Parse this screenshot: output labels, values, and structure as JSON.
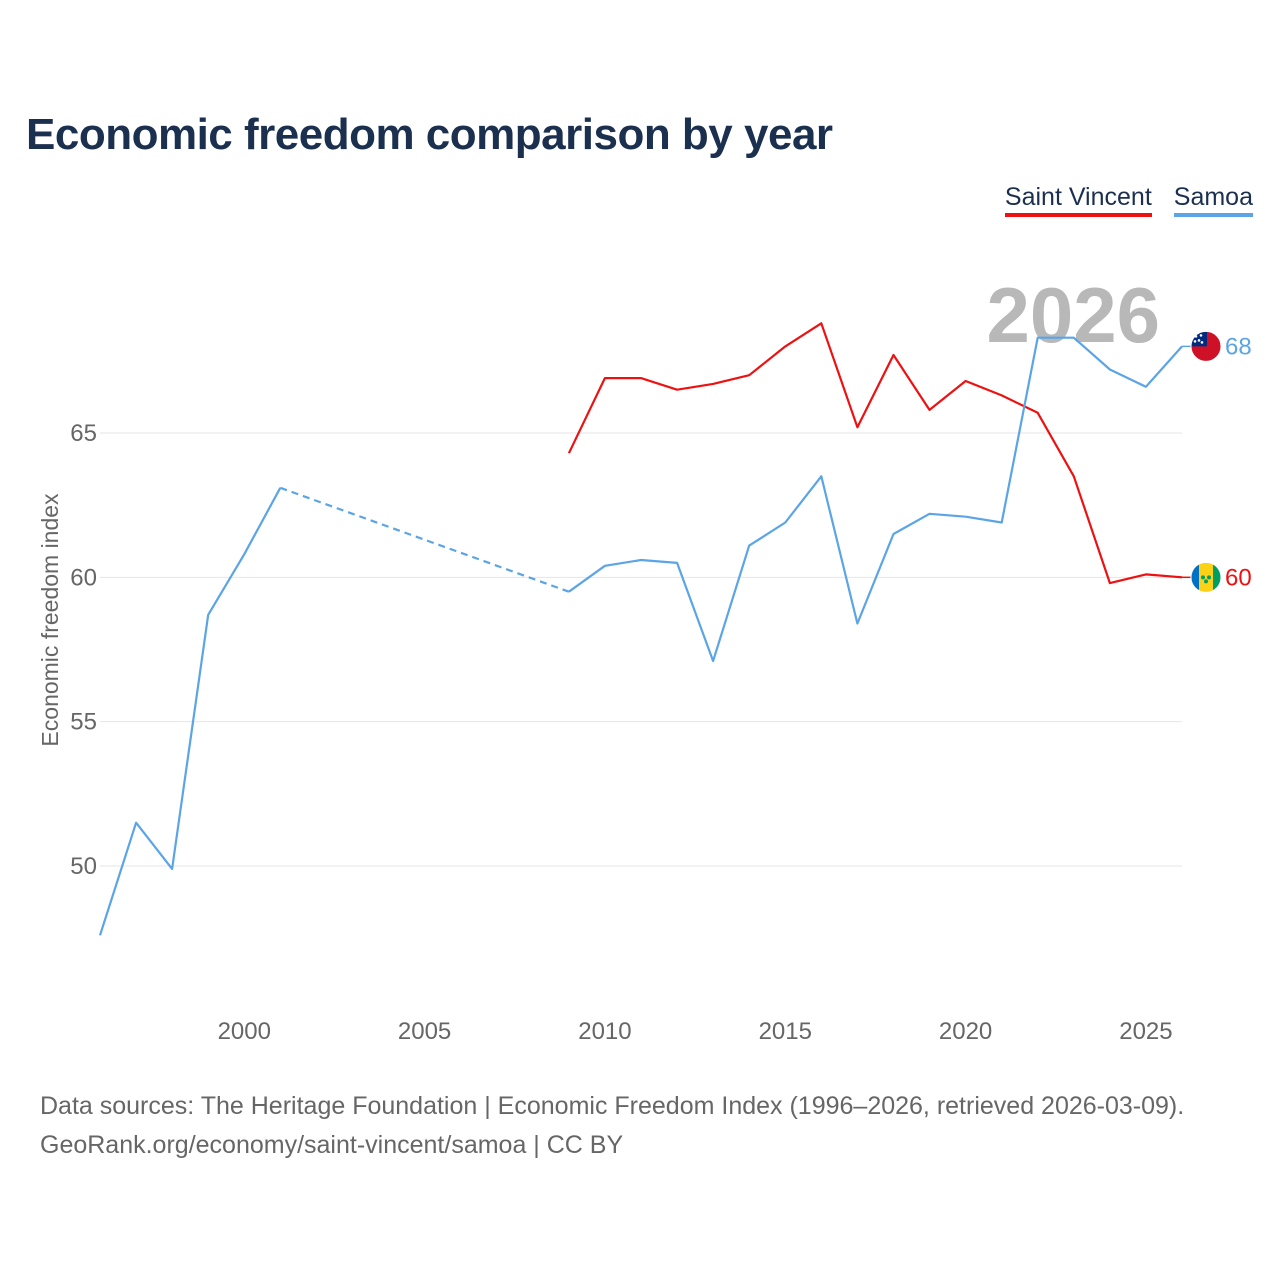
{
  "title": "Economic freedom comparison by year",
  "legend": [
    {
      "label": "Saint Vincent",
      "color": "#ee1111"
    },
    {
      "label": "Samoa",
      "color": "#5ba4e6"
    }
  ],
  "source": {
    "line1": "Data sources: The Heritage Foundation | Economic Freedom Index (1996–2026, retrieved 2026-03-09).",
    "line2": "GeoRank.org/economy/saint-vincent/samoa | CC BY"
  },
  "chart_data": {
    "type": "line",
    "title": "Economic freedom comparison by year",
    "xlabel": "",
    "ylabel": "Economic freedom index",
    "xlim": [
      1996,
      2026
    ],
    "ylim": [
      45.6,
      71.2
    ],
    "x_ticks": [
      2000,
      2005,
      2010,
      2015,
      2020,
      2025
    ],
    "y_ticks": [
      50,
      55,
      60,
      65
    ],
    "grid": true,
    "current_year_label": "2026",
    "series": [
      {
        "name": "Saint Vincent",
        "color": "#ee1111",
        "end_label": "60",
        "flag": "saint-vincent-flag",
        "x": [
          2009,
          2010,
          2011,
          2012,
          2013,
          2014,
          2015,
          2016,
          2017,
          2018,
          2019,
          2020,
          2021,
          2022,
          2023,
          2024,
          2025,
          2026
        ],
        "values": [
          64.3,
          66.9,
          66.9,
          66.5,
          66.7,
          67.0,
          68.0,
          68.8,
          65.2,
          67.7,
          65.8,
          66.8,
          66.3,
          65.7,
          63.5,
          59.8,
          60.1,
          60.0
        ]
      },
      {
        "name": "Samoa",
        "color": "#5ba4e6",
        "end_label": "68",
        "flag": "samoa-flag",
        "x": [
          1996,
          1997,
          1998,
          1999,
          2000,
          2001,
          2009,
          2010,
          2011,
          2012,
          2013,
          2014,
          2015,
          2016,
          2017,
          2018,
          2019,
          2020,
          2021,
          2022,
          2023,
          2024,
          2025,
          2026
        ],
        "values": [
          47.6,
          51.5,
          49.9,
          58.7,
          60.8,
          63.1,
          59.5,
          60.4,
          60.6,
          60.5,
          57.1,
          61.1,
          61.9,
          63.5,
          58.4,
          61.5,
          62.2,
          62.1,
          61.9,
          68.3,
          68.3,
          67.2,
          66.6,
          68.0
        ],
        "dashed_gap": [
          2001,
          2009
        ]
      }
    ]
  }
}
